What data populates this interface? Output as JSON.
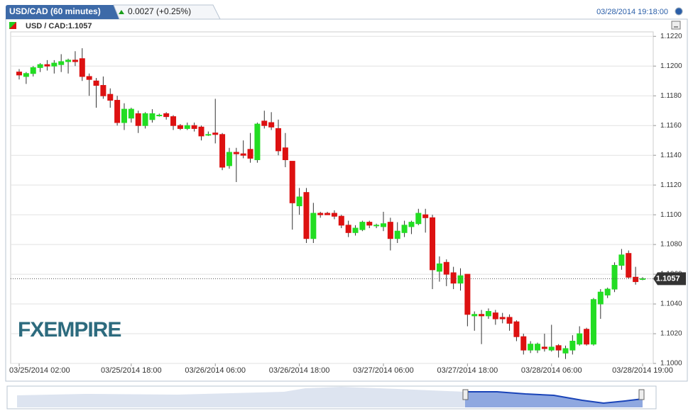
{
  "chart_data": {
    "type": "candlestick",
    "title": "USD/CAD (60 minutes)",
    "change": "0.0027 (+0.25%)",
    "timestamp": "03/28/2014 19:18:00",
    "legend": "USD / CAD:1.1057",
    "logo": "FXEMPIRE",
    "up_color": "#22dd22",
    "down_color": "#dd1111",
    "grid": true,
    "ylim": [
      1.1,
      1.1223
    ],
    "yticks": [
      {
        "value": 1.1,
        "label": "1.1000"
      },
      {
        "value": 1.102,
        "label": "1.1020"
      },
      {
        "value": 1.104,
        "label": "1.1040"
      },
      {
        "value": 1.106,
        "label": "1.1060"
      },
      {
        "value": 1.108,
        "label": "1.1080"
      },
      {
        "value": 1.11,
        "label": "1.1100"
      },
      {
        "value": 1.112,
        "label": "1.1120"
      },
      {
        "value": 1.114,
        "label": "1.1140"
      },
      {
        "value": 1.116,
        "label": "1.1160"
      },
      {
        "value": 1.118,
        "label": "1.1180"
      },
      {
        "value": 1.12,
        "label": "1.1200"
      },
      {
        "value": 1.122,
        "label": "1.1220"
      }
    ],
    "xticks": [
      "03/25/2014 02:00",
      "03/25/2014 18:00",
      "03/26/2014 06:00",
      "03/26/2014 18:00",
      "03/27/2014 06:00",
      "03/27/2014 18:00",
      "03/28/2014 06:00",
      "03/28/2014 19:00"
    ],
    "last": {
      "value": 1.1057,
      "label": "1.1057"
    },
    "x": [
      "03/25/2014 02:00",
      "03/25/2014 03:00",
      "03/25/2014 04:00",
      "03/25/2014 05:00",
      "03/25/2014 06:00",
      "03/25/2014 07:00",
      "03/25/2014 08:00",
      "03/25/2014 09:00",
      "03/25/2014 10:00",
      "03/25/2014 11:00",
      "03/25/2014 12:00",
      "03/25/2014 13:00",
      "03/25/2014 14:00",
      "03/25/2014 15:00",
      "03/25/2014 16:00",
      "03/25/2014 17:00",
      "03/25/2014 18:00",
      "03/25/2014 19:00",
      "03/25/2014 20:00",
      "03/25/2014 21:00",
      "03/25/2014 22:00",
      "03/25/2014 23:00",
      "03/26/2014 00:00",
      "03/26/2014 01:00",
      "03/26/2014 02:00",
      "03/26/2014 03:00",
      "03/26/2014 04:00",
      "03/26/2014 05:00",
      "03/26/2014 06:00",
      "03/26/2014 07:00",
      "03/26/2014 08:00",
      "03/26/2014 09:00",
      "03/26/2014 10:00",
      "03/26/2014 11:00",
      "03/26/2014 12:00",
      "03/26/2014 13:00",
      "03/26/2014 14:00",
      "03/26/2014 15:00",
      "03/26/2014 16:00",
      "03/26/2014 17:00",
      "03/26/2014 18:00",
      "03/26/2014 19:00",
      "03/26/2014 20:00",
      "03/26/2014 21:00",
      "03/26/2014 22:00",
      "03/26/2014 23:00",
      "03/27/2014 00:00",
      "03/27/2014 01:00",
      "03/27/2014 02:00",
      "03/27/2014 03:00",
      "03/27/2014 04:00",
      "03/27/2014 05:00",
      "03/27/2014 06:00",
      "03/27/2014 07:00",
      "03/27/2014 08:00",
      "03/27/2014 09:00",
      "03/27/2014 10:00",
      "03/27/2014 11:00",
      "03/27/2014 12:00",
      "03/27/2014 13:00",
      "03/27/2014 14:00",
      "03/27/2014 15:00",
      "03/27/2014 16:00",
      "03/27/2014 17:00",
      "03/27/2014 18:00",
      "03/27/2014 19:00",
      "03/27/2014 20:00",
      "03/27/2014 21:00",
      "03/27/2014 22:00",
      "03/27/2014 23:00",
      "03/28/2014 00:00",
      "03/28/2014 01:00",
      "03/28/2014 02:00",
      "03/28/2014 03:00",
      "03/28/2014 04:00",
      "03/28/2014 05:00",
      "03/28/2014 06:00",
      "03/28/2014 07:00",
      "03/28/2014 08:00",
      "03/28/2014 09:00",
      "03/28/2014 10:00",
      "03/28/2014 11:00",
      "03/28/2014 12:00",
      "03/28/2014 13:00",
      "03/28/2014 14:00",
      "03/28/2014 15:00",
      "03/28/2014 16:00",
      "03/28/2014 17:00",
      "03/28/2014 18:00",
      "03/28/2014 19:00"
    ],
    "open": [
      1.1196,
      1.1193,
      1.1195,
      1.1199,
      1.1201,
      1.12,
      1.1201,
      1.1203,
      1.1204,
      1.1205,
      1.1193,
      1.119,
      1.1187,
      1.1181,
      1.1177,
      1.1162,
      1.1165,
      1.1168,
      1.116,
      1.1164,
      1.1167,
      1.1168,
      1.1166,
      1.116,
      1.1158,
      1.116,
      1.1159,
      1.1154,
      1.1155,
      1.1154,
      1.1133,
      1.1142,
      1.1141,
      1.1144,
      1.1137,
      1.1163,
      1.1162,
      1.1158,
      1.1145,
      1.1136,
      1.1106,
      1.1115,
      1.1084,
      1.1101,
      1.1101,
      1.1101,
      1.1099,
      1.1093,
      1.1088,
      1.109,
      1.1095,
      1.1093,
      1.1092,
      1.1095,
      1.1084,
      1.1088,
      1.1092,
      1.1094,
      1.11,
      1.1098,
      1.1062,
      1.1068,
      1.1061,
      1.1054,
      1.106,
      1.1032,
      1.1033,
      1.1032,
      1.1034,
      1.1031,
      1.1031,
      1.1028,
      1.1018,
      1.1009,
      1.1009,
      1.1011,
      1.1009,
      1.1012,
      1.1007,
      1.1009,
      1.1013,
      1.1023,
      1.1013,
      1.104,
      1.1046,
      1.105,
      1.1066,
      1.1074,
      1.1058,
      1.1057
    ],
    "high": [
      1.1198,
      1.1196,
      1.12,
      1.1202,
      1.1204,
      1.1204,
      1.1208,
      1.1205,
      1.121,
      1.1212,
      1.1195,
      1.1192,
      1.1193,
      1.1185,
      1.118,
      1.1175,
      1.1172,
      1.117,
      1.1169,
      1.1171,
      1.1168,
      1.1169,
      1.1167,
      1.1161,
      1.1162,
      1.1162,
      1.116,
      1.1156,
      1.1178,
      1.1155,
      1.1145,
      1.1145,
      1.115,
      1.1155,
      1.1162,
      1.117,
      1.1169,
      1.1164,
      1.1155,
      1.1136,
      1.1118,
      1.1118,
      1.1108,
      1.1102,
      1.1102,
      1.1103,
      1.11,
      1.1096,
      1.1093,
      1.1096,
      1.1096,
      1.1094,
      1.1102,
      1.1098,
      1.1095,
      1.1096,
      1.1096,
      1.1104,
      1.1104,
      1.11,
      1.1072,
      1.107,
      1.1065,
      1.1064,
      1.106,
      1.1035,
      1.1036,
      1.1037,
      1.1036,
      1.1034,
      1.1033,
      1.1029,
      1.102,
      1.1015,
      1.1014,
      1.102,
      1.1026,
      1.1013,
      1.1012,
      1.1019,
      1.1025,
      1.1024,
      1.1044,
      1.105,
      1.1051,
      1.1068,
      1.1077,
      1.1076,
      1.1065,
      1.1058
    ],
    "low": [
      1.1191,
      1.1188,
      1.1193,
      1.1196,
      1.1197,
      1.1195,
      1.1196,
      1.1195,
      1.12,
      1.119,
      1.118,
      1.1172,
      1.1178,
      1.1172,
      1.116,
      1.1157,
      1.1162,
      1.1155,
      1.1158,
      1.1162,
      1.1166,
      1.1164,
      1.1157,
      1.1157,
      1.1157,
      1.1156,
      1.115,
      1.1153,
      1.1148,
      1.113,
      1.1131,
      1.1122,
      1.1138,
      1.1135,
      1.1135,
      1.1158,
      1.1157,
      1.114,
      1.1132,
      1.109,
      1.11,
      1.1081,
      1.1081,
      1.1098,
      1.11,
      1.1097,
      1.1091,
      1.1085,
      1.1086,
      1.1089,
      1.1091,
      1.1091,
      1.1089,
      1.1076,
      1.1081,
      1.1085,
      1.1087,
      1.1093,
      1.1088,
      1.105,
      1.1055,
      1.1052,
      1.105,
      1.1049,
      1.1025,
      1.1022,
      1.1013,
      1.103,
      1.1026,
      1.1027,
      1.1022,
      1.1015,
      1.1006,
      1.1007,
      1.1007,
      1.1008,
      1.1008,
      1.1004,
      1.1003,
      1.1006,
      1.1012,
      1.1012,
      1.1012,
      1.103,
      1.1044,
      1.1048,
      1.1063,
      1.1057,
      1.1053,
      1.1056
    ],
    "close": [
      1.1194,
      1.1195,
      1.1199,
      1.1201,
      1.12,
      1.1202,
      1.1203,
      1.1204,
      1.1203,
      1.1193,
      1.1191,
      1.1187,
      1.118,
      1.1177,
      1.1162,
      1.1171,
      1.1171,
      1.116,
      1.1168,
      1.1168,
      1.1167,
      1.1166,
      1.116,
      1.1158,
      1.116,
      1.1158,
      1.1153,
      1.1154,
      1.1154,
      1.1132,
      1.1142,
      1.1141,
      1.114,
      1.1138,
      1.1161,
      1.116,
      1.1159,
      1.1143,
      1.1137,
      1.1108,
      1.1112,
      1.1084,
      1.1101,
      1.11,
      1.11,
      1.1099,
      1.1093,
      1.1088,
      1.1091,
      1.1095,
      1.1093,
      1.1093,
      1.1094,
      1.1084,
      1.1089,
      1.1093,
      1.1095,
      1.1101,
      1.1098,
      1.1063,
      1.1067,
      1.106,
      1.1054,
      1.1059,
      1.1033,
      1.1033,
      1.1032,
      1.1035,
      1.103,
      1.103,
      1.1027,
      1.1018,
      1.1009,
      1.1013,
      1.1013,
      1.101,
      1.1011,
      1.1009,
      1.101,
      1.1015,
      1.102,
      1.1013,
      1.1043,
      1.1048,
      1.105,
      1.1066,
      1.1073,
      1.1058,
      1.1055,
      1.1057
    ]
  }
}
